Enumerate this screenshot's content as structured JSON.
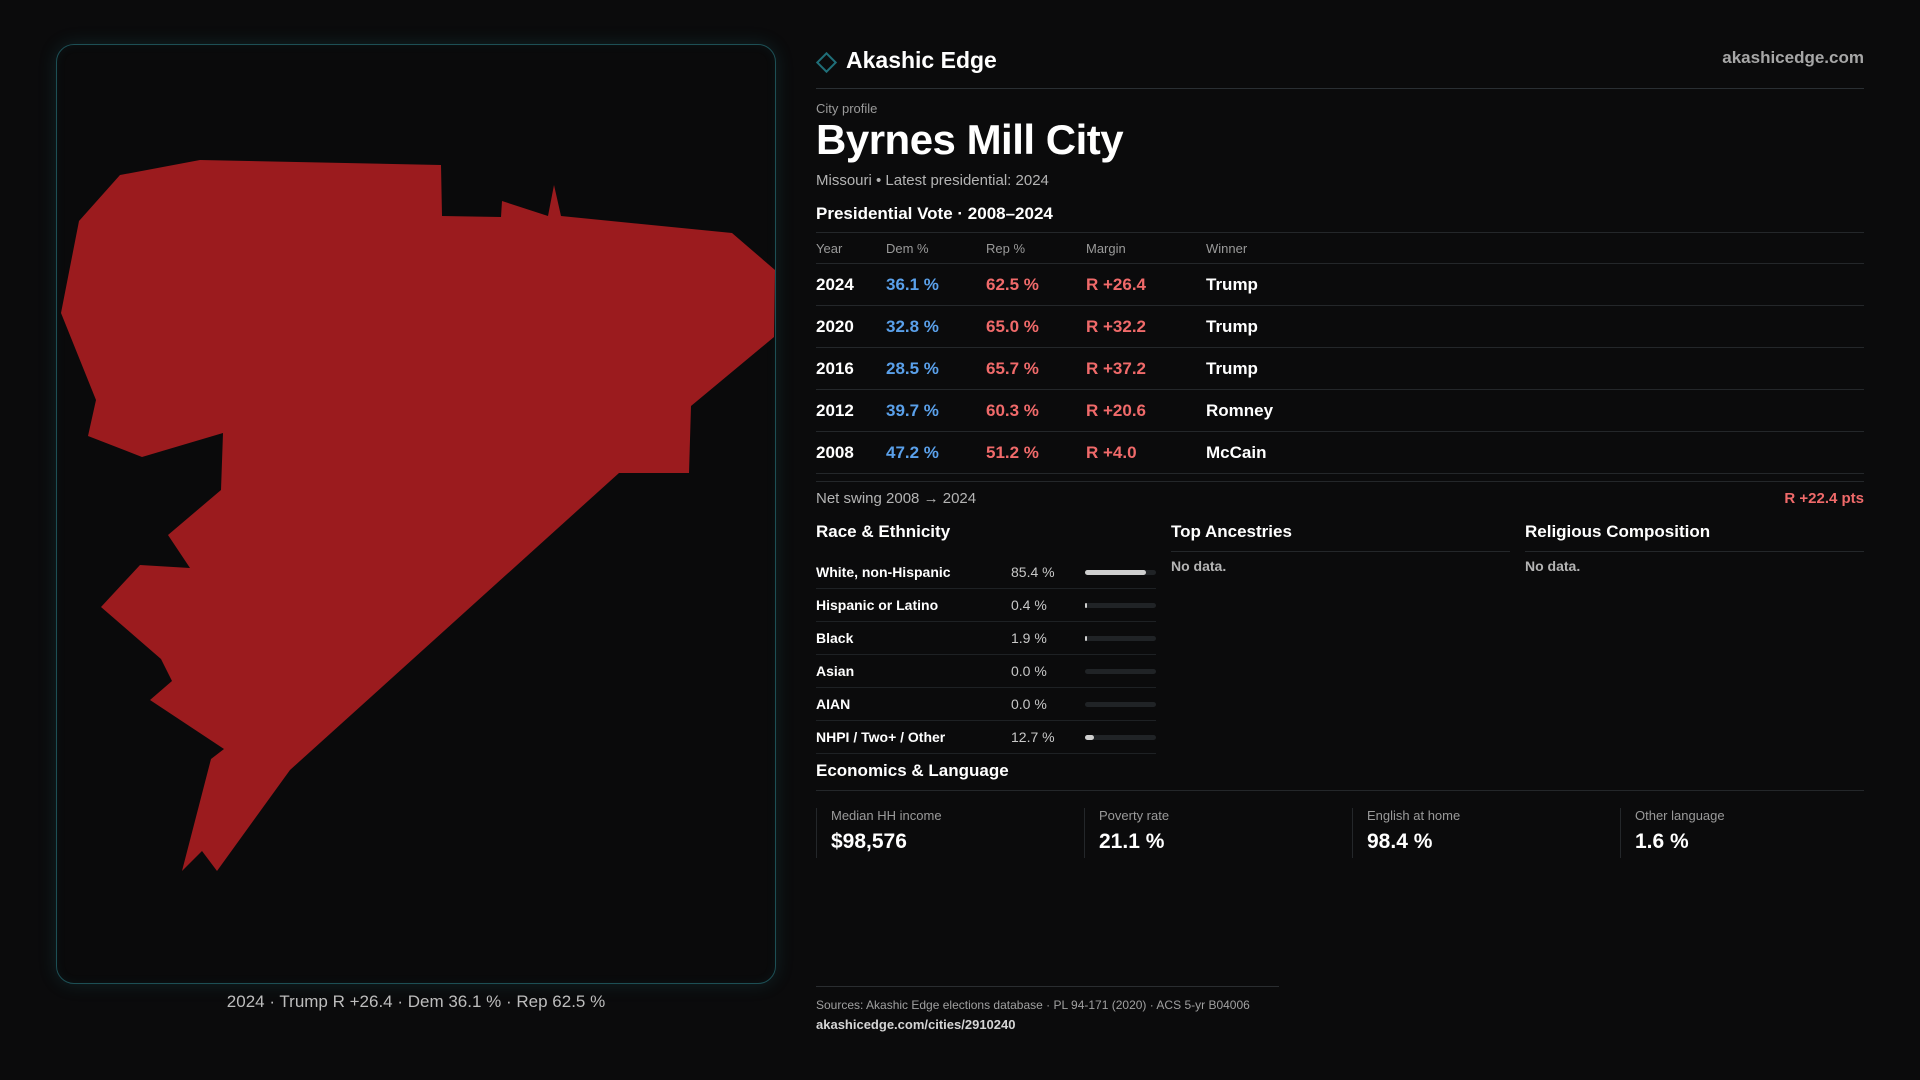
{
  "brand": {
    "name": "Akashic Edge",
    "site": "akashicedge.com"
  },
  "colors": {
    "dem": "#5aa0ea",
    "rep": "#f06a6a",
    "map_fill": "#9b1b1e",
    "panel_border": "#1d4f55"
  },
  "map": {
    "caption": "2024 · Trump R +26.4 · Dem 36.1 % · Rep 62.5 %"
  },
  "profile": {
    "eyebrow": "City profile",
    "name": "Byrnes Mill City",
    "subtitle": "Missouri • Latest presidential: 2024"
  },
  "vote": {
    "title": "Presidential Vote · 2008–2024",
    "headers": {
      "year": "Year",
      "dem": "Dem %",
      "rep": "Rep %",
      "margin": "Margin",
      "winner": "Winner"
    },
    "rows": [
      {
        "year": "2024",
        "dem": "36.1 %",
        "rep": "62.5 %",
        "margin": "R +26.4",
        "winner": "Trump"
      },
      {
        "year": "2020",
        "dem": "32.8 %",
        "rep": "65.0 %",
        "margin": "R +32.2",
        "winner": "Trump"
      },
      {
        "year": "2016",
        "dem": "28.5 %",
        "rep": "65.7 %",
        "margin": "R +37.2",
        "winner": "Trump"
      },
      {
        "year": "2012",
        "dem": "39.7 %",
        "rep": "60.3 %",
        "margin": "R +20.6",
        "winner": "Romney"
      },
      {
        "year": "2008",
        "dem": "47.2 %",
        "rep": "51.2 %",
        "margin": "R +4.0",
        "winner": "McCain"
      }
    ],
    "swing_label": "Net swing 2008 → 2024",
    "swing_value": "R +22.4 pts"
  },
  "race": {
    "title": "Race & Ethnicity",
    "rows": [
      {
        "label": "White, non-Hispanic",
        "pct": "85.4 %",
        "fraction": 0.854
      },
      {
        "label": "Hispanic or Latino",
        "pct": "0.4 %",
        "fraction": 0.004
      },
      {
        "label": "Black",
        "pct": "1.9 %",
        "fraction": 0.019
      },
      {
        "label": "Asian",
        "pct": "0.0 %",
        "fraction": 0.0
      },
      {
        "label": "AIAN",
        "pct": "0.0 %",
        "fraction": 0.0
      },
      {
        "label": "NHPI / Two+ / Other",
        "pct": "12.7 %",
        "fraction": 0.127
      }
    ]
  },
  "ancestries": {
    "title": "Top Ancestries",
    "empty": "No data."
  },
  "religion": {
    "title": "Religious Composition",
    "empty": "No data."
  },
  "econ": {
    "title": "Economics & Language",
    "cells": [
      {
        "label": "Median HH income",
        "value": "$98,576"
      },
      {
        "label": "Poverty rate",
        "value": "21.1 %"
      },
      {
        "label": "English at home",
        "value": "98.4 %"
      },
      {
        "label": "Other language",
        "value": "1.6 %"
      }
    ]
  },
  "footer": {
    "sources": "Sources: Akashic Edge elections database · PL 94-171 (2020) · ACS 5-yr B04006",
    "url": "akashicedge.com/cities/2910240"
  }
}
